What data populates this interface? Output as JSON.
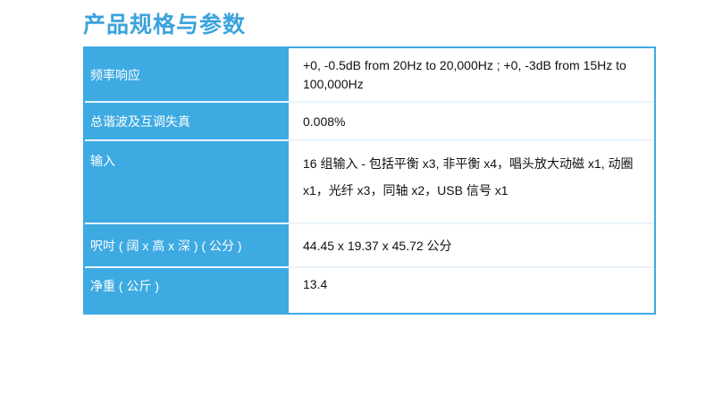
{
  "title": "产品规格与参数",
  "colors": {
    "accent": "#3eaae2",
    "title": "#3ba3dc"
  },
  "specs": [
    {
      "label": "频率响应",
      "value": "+0, -0.5dB from 20Hz to 20,000Hz ; +0, -3dB from 15Hz to 100,000Hz"
    },
    {
      "label": "总谐波及互调失真",
      "value": "0.008%"
    },
    {
      "label": "输入",
      "value": "16 组输入 - 包括平衡 x3, 非平衡 x4，唱头放大动磁 x1, 动圈 x1，光纤 x3，同轴 x2，USB 信号 x1"
    },
    {
      "label": "呎吋 ( 阔 x 高 x 深 ) ( 公分 )",
      "value": "44.45 x 19.37 x 45.72 公分"
    },
    {
      "label": "净重 ( 公斤 )",
      "value": "13.4"
    }
  ]
}
